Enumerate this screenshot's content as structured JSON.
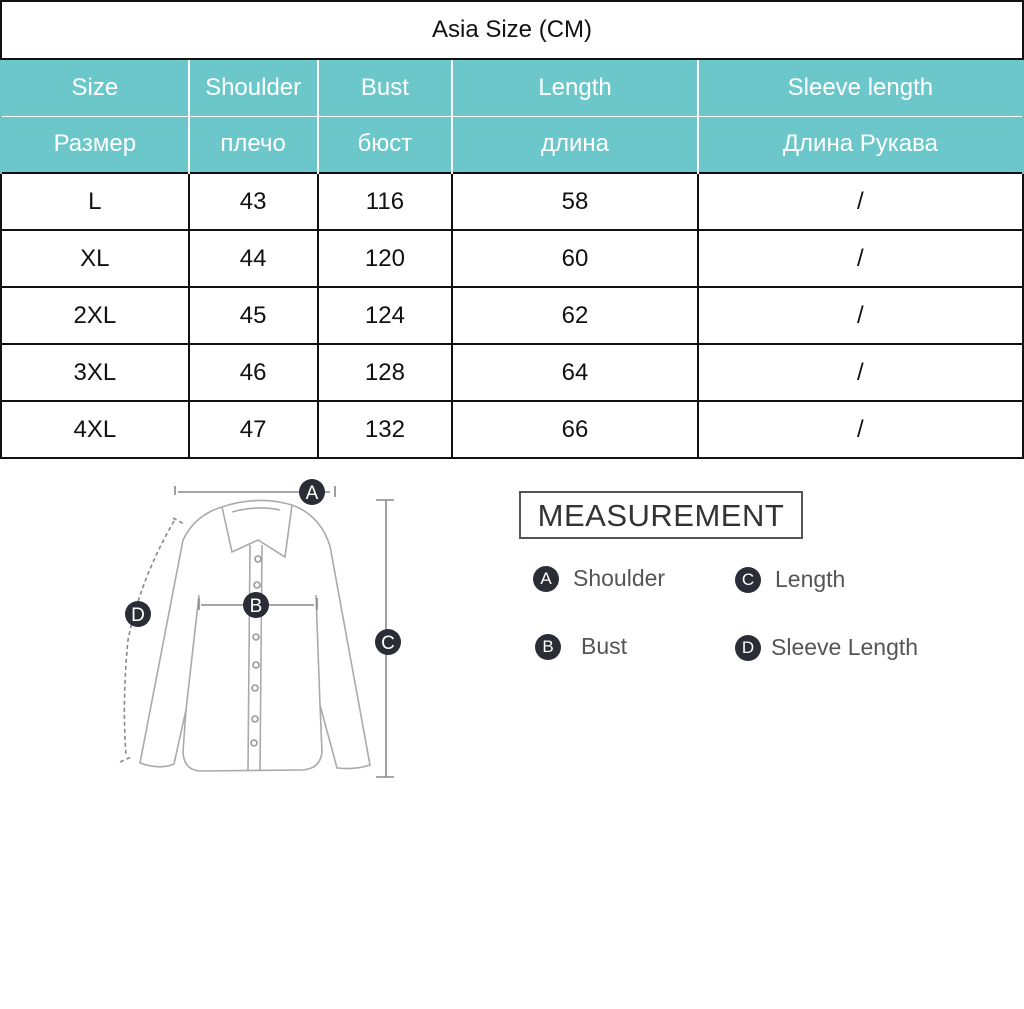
{
  "table": {
    "title": "Asia Size (CM)",
    "header_en": [
      "Size",
      "Shoulder",
      "Bust",
      "Length",
      "Sleeve length"
    ],
    "header_ru": [
      "Размер",
      "плечо",
      "бюст",
      "длина",
      "Длина  Рукава"
    ],
    "rows": [
      [
        "L",
        "43",
        "116",
        "58",
        "/"
      ],
      [
        "XL",
        "44",
        "120",
        "60",
        "/"
      ],
      [
        "2XL",
        "45",
        "124",
        "62",
        "/"
      ],
      [
        "3XL",
        "46",
        "128",
        "64",
        "/"
      ],
      [
        "4XL",
        "47",
        "132",
        "66",
        "/"
      ]
    ],
    "header_color": "#6cc7cb"
  },
  "diagram": {
    "labels": {
      "a": "A",
      "b": "B",
      "c": "C",
      "d": "D"
    }
  },
  "measurement": {
    "title": "MEASUREMENT",
    "items": [
      {
        "badge": "A",
        "label": "Shoulder"
      },
      {
        "badge": "C",
        "label": "Length"
      },
      {
        "badge": "B",
        "label": "Bust"
      },
      {
        "badge": "D",
        "label": "Sleeve Length"
      }
    ]
  }
}
